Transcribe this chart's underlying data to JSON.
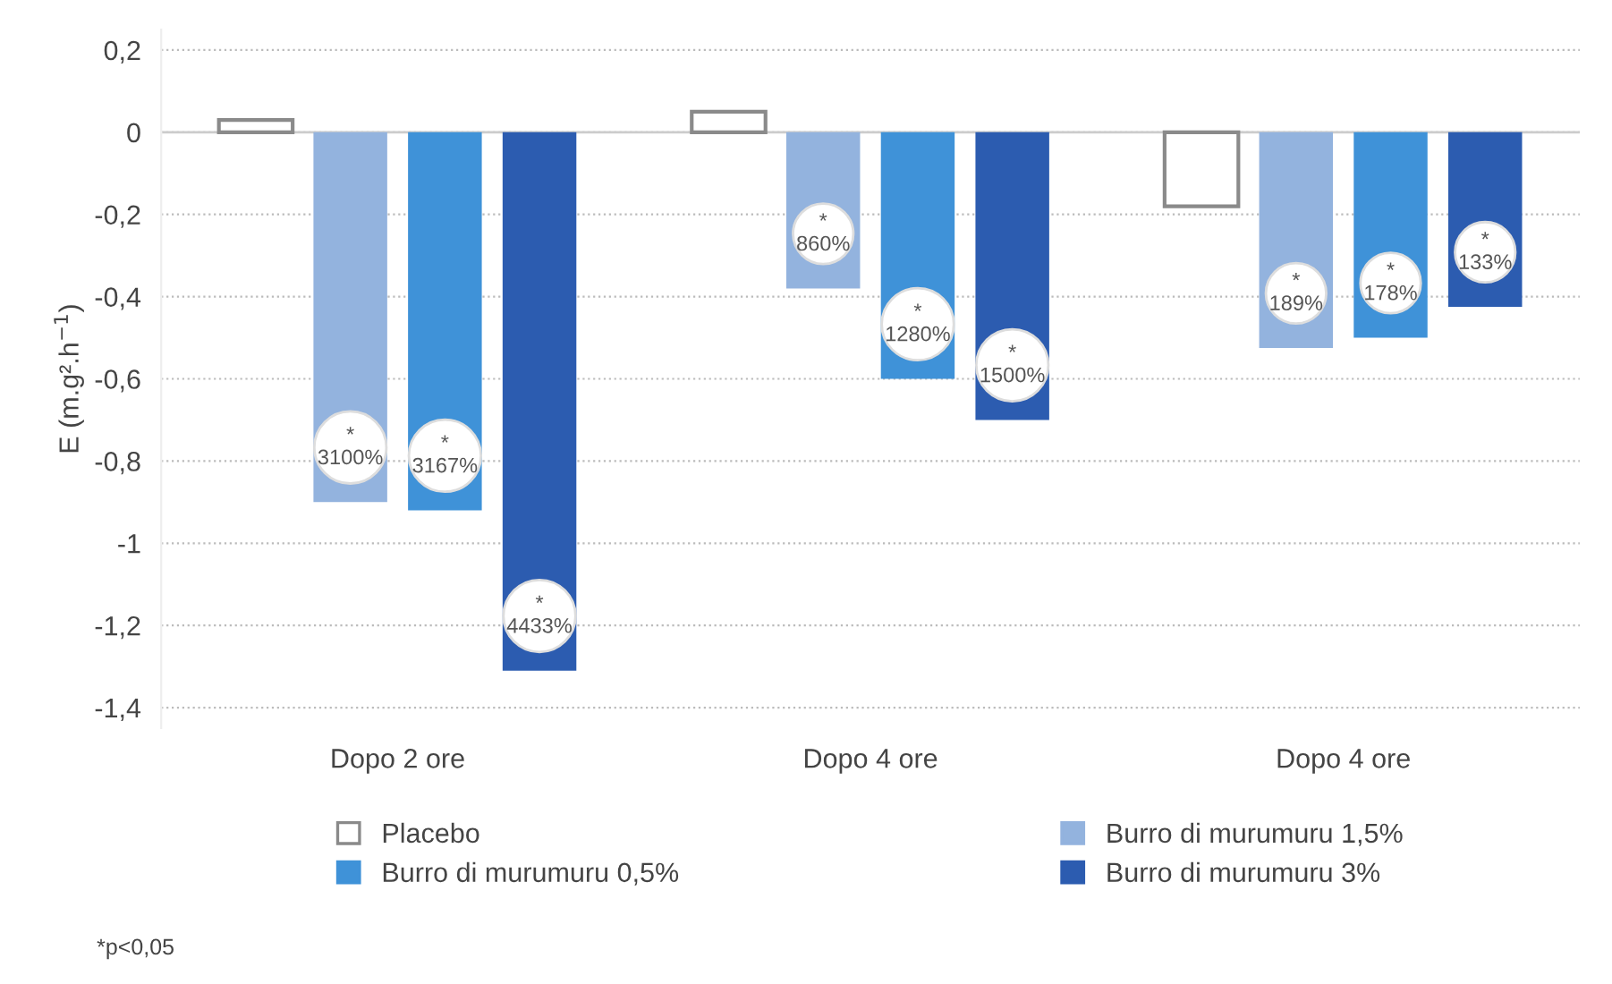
{
  "chart_data": {
    "type": "bar",
    "ylabel": "E (m.g².h$^{−1}$)",
    "categories": [
      "Dopo 2 ore",
      "Dopo 4 ore",
      "Dopo 4 ore"
    ],
    "series": [
      {
        "name": "Placebo",
        "color": "#ffffff",
        "values": [
          0.03,
          0.05,
          -0.18
        ]
      },
      {
        "name": "Burro di murumuru 1,5%",
        "color": "#93b3de",
        "values": [
          -0.9,
          -0.38,
          -0.525
        ]
      },
      {
        "name": "Burro di murumuru 0,5%",
        "color": "#3f92d8",
        "values": [
          -0.92,
          -0.6,
          -0.5
        ]
      },
      {
        "name": "Burro di murumuru 3%",
        "color": "#2c5cb0",
        "values": [
          -1.31,
          -0.7,
          -0.425
        ]
      }
    ],
    "ylim": [
      -1.45,
      0.25
    ],
    "yticks": [
      {
        "value": 0.2,
        "label": "0,2"
      },
      0,
      {
        "value": -0.2,
        "label": "-0,2"
      },
      {
        "value": -0.4,
        "label": "-0,4"
      },
      {
        "value": -0.6,
        "label": "-0,6"
      },
      {
        "value": -0.8,
        "label": "-0,8"
      },
      {
        "value": -1,
        "label": "-1"
      },
      {
        "value": -1.2,
        "label": "-1,2"
      },
      {
        "value": -1.4,
        "label": "-1,4"
      }
    ],
    "grid": "y",
    "legend": "bottom",
    "annotations": [
      "*\n3100%",
      "*\n3167%",
      "*\n4433%",
      "*\n860%",
      "*\n1280%",
      "*\n1500%",
      "*\n189%",
      "*\n178%",
      "*\n133%",
      "*p<0,05"
    ]
  }
}
